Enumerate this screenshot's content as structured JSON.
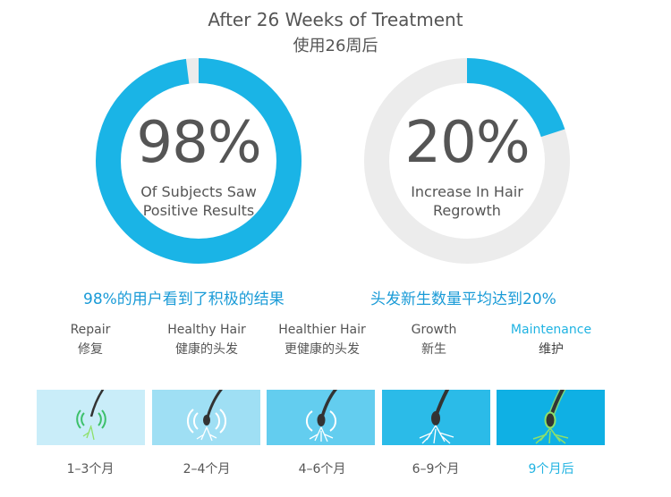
{
  "header": {
    "title_en": "After 26 Weeks of Treatment",
    "title_zh": "使用26周后"
  },
  "stats": [
    {
      "value": "98%",
      "percent": 98,
      "label_line1": "Of Subjects Saw",
      "label_line2": "Positive Results",
      "caption": "98%的用户看到了积极的结果",
      "color": "#1ab4e6"
    },
    {
      "value": "20%",
      "percent": 20,
      "label_line1": "Increase In Hair",
      "label_line2": "Regrowth",
      "caption": "头发新生数量平均达到20%",
      "color": "#1ab4e6"
    }
  ],
  "stages": [
    {
      "name_en": "Repair",
      "name_zh": "修复",
      "time": "1–3个月",
      "panel_color": "#c9edf9",
      "highlight": false
    },
    {
      "name_en": "Healthy Hair",
      "name_zh": "健康的头发",
      "time": "2–4个月",
      "panel_color": "#9fdff4",
      "highlight": false
    },
    {
      "name_en": "Healthier Hair",
      "name_zh": "更健康的头发",
      "time": "4–6个月",
      "panel_color": "#63cdef",
      "highlight": false
    },
    {
      "name_en": "Growth",
      "name_zh": "新生",
      "time": "6–9个月",
      "panel_color": "#2bbbe8",
      "highlight": false
    },
    {
      "name_en": "Maintenance",
      "name_zh": "维护",
      "time": "9个月后",
      "panel_color": "#0fb0e4",
      "highlight": true
    }
  ],
  "colors": {
    "ring_track": "#ececec",
    "accent": "#1ab4e6",
    "hair": "#333333",
    "root_green": "#8ee06a"
  }
}
